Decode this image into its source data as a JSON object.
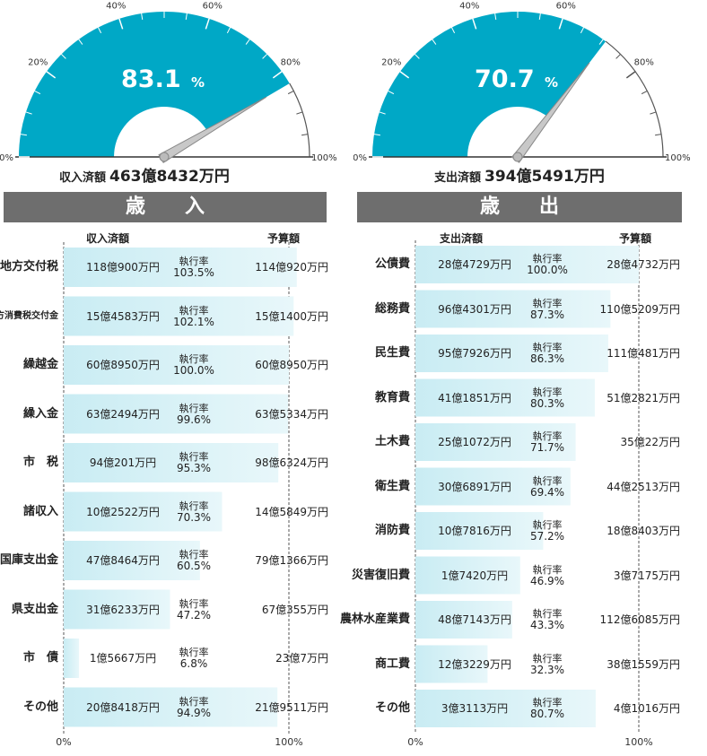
{
  "colors": {
    "gauge_fill": "#00a8c6",
    "bar_fill": "#c9ecf3",
    "bar_light": "#e8f7fa",
    "banner": "#6e6e6e",
    "axis": "#333333"
  },
  "revenue": {
    "gauge": {
      "value": 83.1,
      "unit": "%",
      "ticks": [
        "0%",
        "20%",
        "40%",
        "60%",
        "80%",
        "100%"
      ]
    },
    "total_label": "収入済額",
    "total_value": "463億8432万円",
    "banner_title": "歳入",
    "col_spent": "収入済額",
    "col_budget": "予算額",
    "rate_label": "執行率",
    "axis_ticks": [
      "0%",
      "100%"
    ]
  },
  "expenditure": {
    "gauge": {
      "value": 70.7,
      "unit": "%",
      "ticks": [
        "0%",
        "20%",
        "40%",
        "60%",
        "80%",
        "100%"
      ]
    },
    "total_label": "支出済額",
    "total_value": "394億5491万円",
    "banner_title": "歳出",
    "col_spent": "支出済額",
    "col_budget": "予算額",
    "rate_label": "執行率",
    "axis_ticks": [
      "0%",
      "100%"
    ]
  },
  "chart_data": [
    {
      "type": "bar",
      "title": "歳入",
      "categories": [
        "地方交付税",
        "地方消費税交付金",
        "繰越金",
        "繰入金",
        "市税",
        "諸収入",
        "国庫支出金",
        "県支出金",
        "市債",
        "その他"
      ],
      "category_labels": [
        "地方交付税",
        "地方消費税交付金",
        "繰越金",
        "繰入金",
        "市　税",
        "諸収入",
        "国庫支出金",
        "県支出金",
        "市　債",
        "その他"
      ],
      "spent": [
        "118億900万円",
        "15億4583万円",
        "60億8950万円",
        "63億2494万円",
        "94億201万円",
        "10億2522万円",
        "47億8464万円",
        "31億6233万円",
        "1億5667万円",
        "20億8418万円"
      ],
      "rates": [
        "103.5%",
        "102.1%",
        "100.0%",
        "99.6%",
        "95.3%",
        "70.3%",
        "60.5%",
        "47.2%",
        "6.8%",
        "94.9%"
      ],
      "values": [
        103.5,
        102.1,
        100.0,
        99.6,
        95.3,
        70.3,
        60.5,
        47.2,
        6.8,
        94.9
      ],
      "budgets": [
        "114億920万円",
        "15億1400万円",
        "60億8950万円",
        "63億5334万円",
        "98億6324万円",
        "14億5849万円",
        "79億1366万円",
        "67億355万円",
        "23億7万円",
        "21億9511万円"
      ],
      "xlim": [
        0,
        100
      ]
    },
    {
      "type": "bar",
      "title": "歳出",
      "categories": [
        "公債費",
        "総務費",
        "民生費",
        "教育費",
        "土木費",
        "衛生費",
        "消防費",
        "災害復旧費",
        "農林水産業費",
        "商工費",
        "その他"
      ],
      "category_labels": [
        "公債費",
        "総務費",
        "民生費",
        "教育費",
        "土木費",
        "衛生費",
        "消防費",
        "災害復旧費",
        "農林水産業費",
        "商工費",
        "その他"
      ],
      "spent": [
        "28億4729万円",
        "96億4301万円",
        "95億7926万円",
        "41億1851万円",
        "25億1072万円",
        "30億6891万円",
        "10億7816万円",
        "1億7420万円",
        "48億7143万円",
        "12億3229万円",
        "3億3113万円"
      ],
      "rates": [
        "100.0%",
        "87.3%",
        "86.3%",
        "80.3%",
        "71.7%",
        "69.4%",
        "57.2%",
        "46.9%",
        "43.3%",
        "32.3%",
        "80.7%"
      ],
      "values": [
        100.0,
        87.3,
        86.3,
        80.3,
        71.7,
        69.4,
        57.2,
        46.9,
        43.3,
        32.3,
        80.7
      ],
      "budgets": [
        "28億4732万円",
        "110億5209万円",
        "111億481万円",
        "51億2821万円",
        "35億22万円",
        "44億2513万円",
        "18億8403万円",
        "3億7175万円",
        "112億6085万円",
        "38億1559万円",
        "4億1016万円"
      ],
      "xlim": [
        0,
        100
      ]
    }
  ]
}
